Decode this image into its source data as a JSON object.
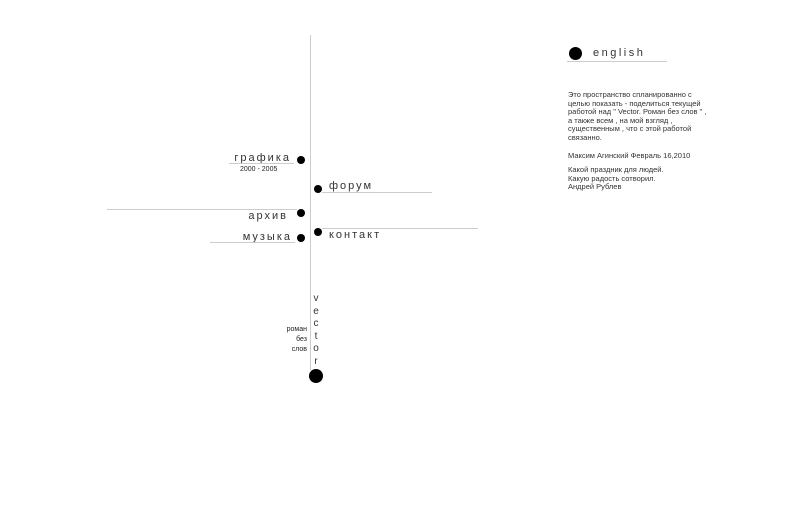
{
  "nav": {
    "grafika": "графика",
    "grafika_years": "2000 - 2005",
    "forum": "форум",
    "arhiv": "архив",
    "muzyka": "музыка",
    "kontakt": "контакт",
    "english": "english"
  },
  "vector": {
    "letters": [
      "v",
      "e",
      "c",
      "t",
      "o",
      "r"
    ],
    "caption": [
      "роман",
      "без",
      "слов"
    ]
  },
  "about": {
    "intro": "Это  пространство спланированно с целью  показать - поделиться текущей работой  над \" Vector. Роман без слов \"  , а также всем , на мой взгляд , существенным , что с этой работой связанно.",
    "signature": "Максим Агинский Февраль 16,2010",
    "quote": [
      "Какой праздник для людей.",
      "Какую радость сотворил.",
      "Андрей Рублев"
    ]
  }
}
